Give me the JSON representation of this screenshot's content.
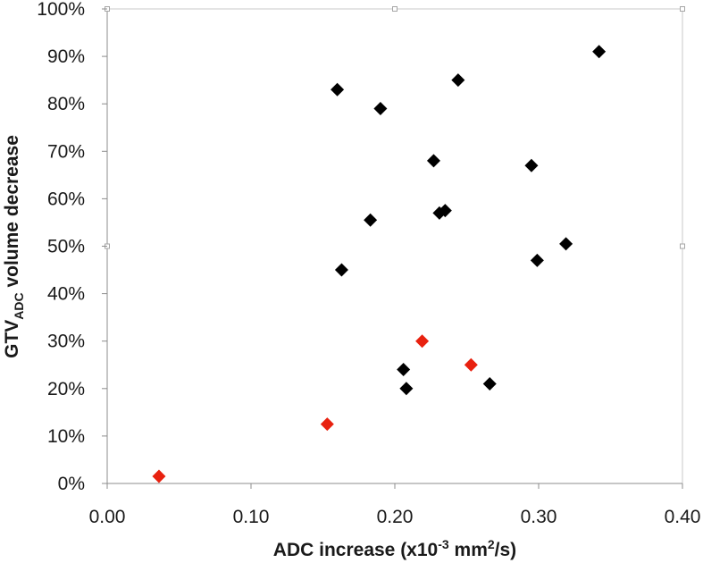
{
  "chart_data": {
    "type": "scatter",
    "title": "",
    "xlabel": {
      "prefix": "ADC increase (x10",
      "sup1": "-3",
      "mid": " mm",
      "sup2": "2",
      "suffix": "/s)"
    },
    "ylabel": {
      "prefix": "GTV",
      "sub": "ADC",
      "suffix": " volume decrease"
    },
    "xlim": [
      0,
      0.4
    ],
    "ylim": [
      0,
      100
    ],
    "xticks": [
      0.0,
      0.1,
      0.2,
      0.3,
      0.4
    ],
    "xtick_labels": [
      "0.00",
      "0.10",
      "0.20",
      "0.30",
      "0.40"
    ],
    "yticks": [
      0,
      10,
      20,
      30,
      40,
      50,
      60,
      70,
      80,
      90,
      100
    ],
    "ytick_labels": [
      "0%",
      "10%",
      "20%",
      "30%",
      "40%",
      "50%",
      "60%",
      "70%",
      "80%",
      "90%",
      "100%"
    ],
    "grid": false,
    "series": [
      {
        "name": "black",
        "color": "#000000",
        "marker": "diamond",
        "points": [
          [
            0.16,
            83
          ],
          [
            0.19,
            79
          ],
          [
            0.244,
            85
          ],
          [
            0.342,
            91
          ],
          [
            0.227,
            68
          ],
          [
            0.295,
            67
          ],
          [
            0.231,
            57
          ],
          [
            0.235,
            57.5
          ],
          [
            0.183,
            55.5
          ],
          [
            0.319,
            50.5
          ],
          [
            0.163,
            45
          ],
          [
            0.299,
            47
          ],
          [
            0.206,
            24
          ],
          [
            0.208,
            20
          ],
          [
            0.266,
            21
          ]
        ]
      },
      {
        "name": "red",
        "color": "#e8210f",
        "marker": "diamond",
        "points": [
          [
            0.036,
            1.5
          ],
          [
            0.153,
            12.5
          ],
          [
            0.219,
            30
          ],
          [
            0.253,
            25
          ]
        ]
      }
    ]
  }
}
